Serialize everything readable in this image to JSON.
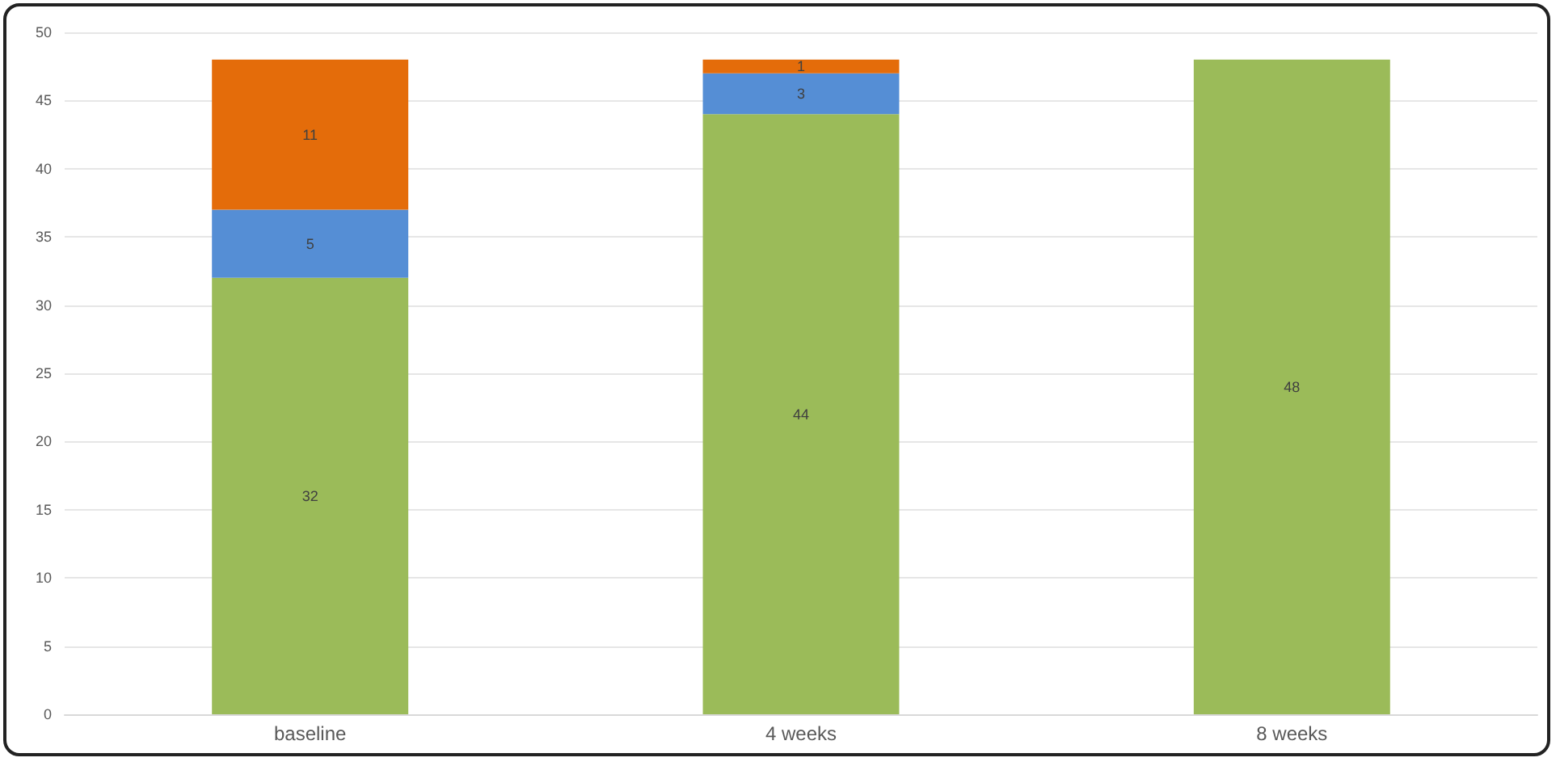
{
  "chart_data": {
    "type": "bar",
    "stacked": true,
    "categories": [
      "baseline",
      "4 weeks",
      "8 weeks"
    ],
    "series": [
      {
        "color": "#9bbb59",
        "values": [
          32,
          44,
          48
        ]
      },
      {
        "color": "#558ed5",
        "values": [
          5,
          3,
          null
        ]
      },
      {
        "color": "#e46c0a",
        "values": [
          11,
          1,
          null
        ]
      }
    ],
    "ylim": [
      0,
      50
    ],
    "yticks": [
      0,
      5,
      10,
      15,
      20,
      25,
      30,
      35,
      40,
      45,
      50
    ],
    "grid": "y",
    "data_labels": true
  }
}
